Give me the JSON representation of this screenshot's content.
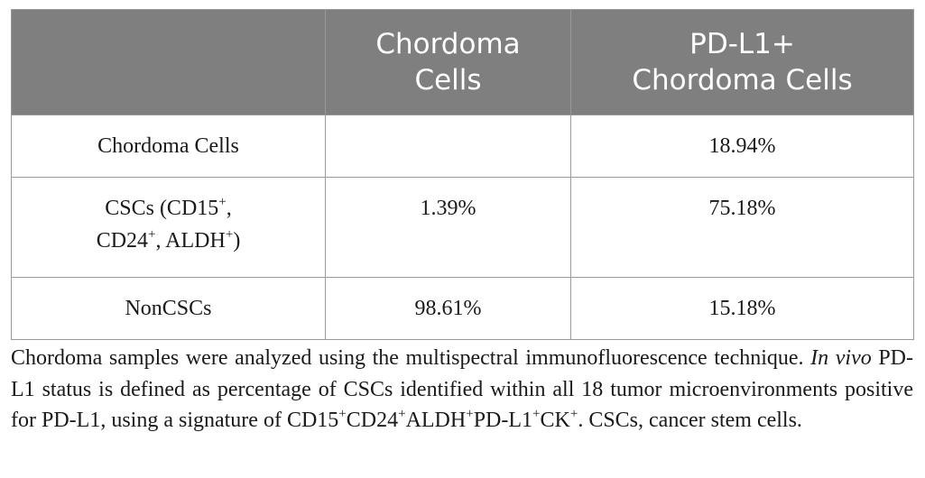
{
  "table": {
    "headers": {
      "col1": "",
      "col2_line1": "Chordoma",
      "col2_line2": "Cells",
      "col3_line1": "PD-L1+",
      "col3_line2": "Chordoma Cells"
    },
    "rows": [
      {
        "label": "Chordoma Cells",
        "c1": "",
        "c2": "18.94%"
      },
      {
        "label_line1_a": "CSCs (CD15",
        "label_line1_sup": "+",
        "label_line1_b": ",",
        "label_line2_a": "CD24",
        "label_line2_sup1": "+",
        "label_line2_b": ", ALDH",
        "label_line2_sup2": "+",
        "label_line2_c": ")",
        "c1": "1.39%",
        "c2": "75.18%"
      },
      {
        "label": "NonCSCs",
        "c1": "98.61%",
        "c2": "15.18%"
      }
    ]
  },
  "footnote": {
    "p1": "Chordoma samples were analyzed using the multispectral immunofluorescence technique. ",
    "italic": "In vivo",
    "p2": " PD-L1 status is defined as percentage of CSCs identified within all 18 tumor microenvironments positive for PD-L1, using a signature of CD15",
    "sup1": "+",
    "p3": "CD24",
    "sup2": "+",
    "p4": "ALDH",
    "sup3": "+",
    "p5": "PD-L1",
    "sup4": "+",
    "p6": "CK",
    "sup5": "+",
    "p7": ". CSCs, cancer stem cells."
  }
}
